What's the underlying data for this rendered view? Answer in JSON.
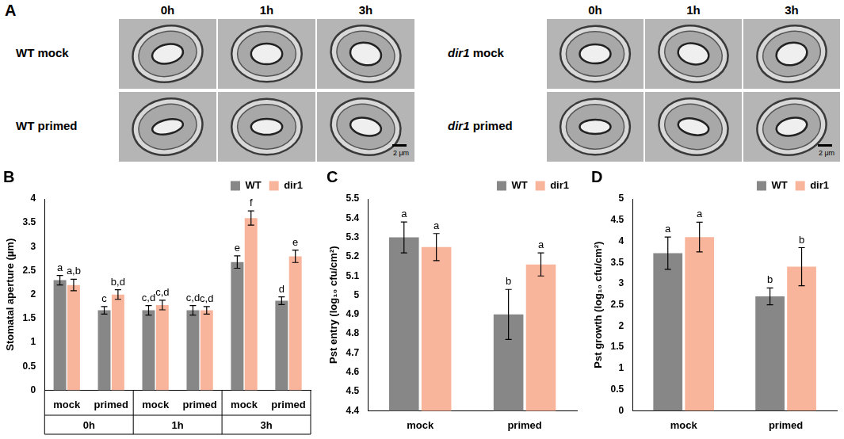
{
  "panel_a": {
    "panel_label": "A",
    "scale_bar": "2 μm",
    "groups": [
      {
        "columns": [
          "0h",
          "1h",
          "3h"
        ],
        "italic_genotype": false,
        "rows": [
          {
            "genotype": "WT",
            "treatment": "mock"
          },
          {
            "genotype": "WT",
            "treatment": "primed"
          }
        ]
      },
      {
        "columns": [
          "0h",
          "1h",
          "3h"
        ],
        "italic_genotype": true,
        "rows": [
          {
            "genotype": "dir1",
            "treatment": "mock"
          },
          {
            "genotype": "dir1",
            "treatment": "primed"
          }
        ]
      }
    ]
  },
  "chart_data": [
    {
      "panel_label": "B",
      "type": "bar",
      "ylabel": "Stomatal aperture (µm)",
      "categories": [
        "mock",
        "primed",
        "mock",
        "primed",
        "mock",
        "primed"
      ],
      "x_groups": [
        "0h",
        "1h",
        "3h"
      ],
      "series": [
        {
          "name": "WT",
          "color": "#878787",
          "values": [
            2.3,
            1.67,
            1.67,
            1.67,
            2.68,
            1.87
          ],
          "errors": [
            0.1,
            0.08,
            0.1,
            0.1,
            0.13,
            0.08
          ],
          "letters": [
            "a",
            "c",
            "c,d",
            "c,d",
            "e",
            "d"
          ]
        },
        {
          "name": "dir1",
          "color": "#f9b59b",
          "values": [
            2.2,
            2.0,
            1.78,
            1.67,
            3.6,
            2.8
          ],
          "errors": [
            0.12,
            0.1,
            0.1,
            0.08,
            0.15,
            0.13
          ],
          "letters": [
            "a,b",
            "b,d",
            "c,d",
            "c,d",
            "f",
            "e"
          ]
        }
      ],
      "ylim": [
        0,
        4
      ],
      "yticks": [
        0,
        0.5,
        1,
        1.5,
        2,
        2.5,
        3,
        3.5,
        4
      ],
      "grid": false,
      "legend": "top-right"
    },
    {
      "panel_label": "C",
      "type": "bar",
      "ylabel": "Pst entry (log₁₀ cfu/cm²)",
      "categories": [
        "mock",
        "primed"
      ],
      "series": [
        {
          "name": "WT",
          "color": "#878787",
          "values": [
            5.3,
            4.9
          ],
          "errors": [
            0.08,
            0.13
          ],
          "letters": [
            "a",
            "b"
          ]
        },
        {
          "name": "dir1",
          "color": "#f9b59b",
          "values": [
            5.25,
            5.16
          ],
          "errors": [
            0.07,
            0.06
          ],
          "letters": [
            "a",
            "a"
          ]
        }
      ],
      "ylim": [
        4.4,
        5.5
      ],
      "yticks": [
        4.4,
        4.5,
        4.6,
        4.7,
        4.8,
        4.9,
        5,
        5.1,
        5.2,
        5.3,
        5.4,
        5.5
      ],
      "grid": false,
      "legend": "top-right"
    },
    {
      "panel_label": "D",
      "type": "bar",
      "ylabel": "Pst growth (log₁₀ cfu/cm²)",
      "categories": [
        "mock",
        "primed"
      ],
      "series": [
        {
          "name": "WT",
          "color": "#878787",
          "values": [
            3.72,
            2.7
          ],
          "errors": [
            0.38,
            0.2
          ],
          "letters": [
            "a",
            "b"
          ]
        },
        {
          "name": "dir1",
          "color": "#f9b59b",
          "values": [
            4.1,
            3.4
          ],
          "errors": [
            0.35,
            0.45
          ],
          "letters": [
            "a",
            "b"
          ]
        }
      ],
      "ylim": [
        0,
        5
      ],
      "yticks": [
        0,
        0.5,
        1,
        1.5,
        2,
        2.5,
        3,
        3.5,
        4,
        4.5,
        5
      ],
      "grid": false,
      "legend": "top-right"
    }
  ]
}
